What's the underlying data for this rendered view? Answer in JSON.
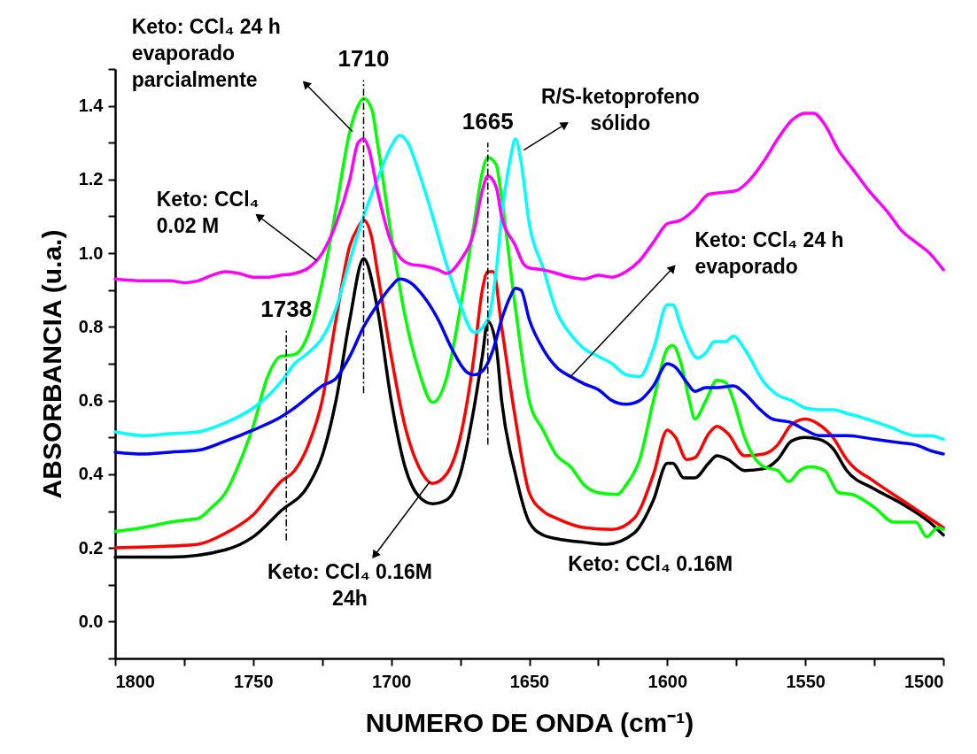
{
  "chart_data": {
    "type": "line",
    "xlabel": "NUMERO DE ONDA (cm⁻¹)",
    "ylabel": "ABSORBANCIA (u.a.)",
    "xlim": [
      1800,
      1500
    ],
    "ylim": [
      -0.1,
      1.5
    ],
    "xticks": [
      1800,
      {
        "value": 1775,
        "label": null
      },
      1750,
      {
        "value": 1725,
        "label": null
      },
      1700,
      {
        "value": 1675,
        "label": null
      },
      1650,
      {
        "value": 1625,
        "label": null
      },
      1600,
      {
        "value": 1575,
        "label": null
      },
      1550,
      {
        "value": 1525,
        "label": null
      },
      1500
    ],
    "yticks": [
      {
        "value": -0.1,
        "label": null
      },
      {
        "value": 0,
        "label": "0.0"
      },
      {
        "value": 0.1,
        "label": null
      },
      {
        "value": 0.2,
        "label": "0.2"
      },
      {
        "value": 0.3,
        "label": null
      },
      {
        "value": 0.4,
        "label": "0.4"
      },
      {
        "value": 0.5,
        "label": null
      },
      {
        "value": 0.6,
        "label": "0.6"
      },
      {
        "value": 0.7,
        "label": null
      },
      {
        "value": 0.8,
        "label": "0.8"
      },
      {
        "value": 0.9,
        "label": null
      },
      {
        "value": 1,
        "label": "1.0"
      },
      {
        "value": 1.1,
        "label": null
      },
      {
        "value": 1.2,
        "label": "1.2"
      },
      {
        "value": 1.3,
        "label": null
      },
      {
        "value": 1.4,
        "label": "1.4"
      },
      {
        "value": 1.5,
        "label": null
      }
    ],
    "series": [
      {
        "color": "#000000",
        "x": [
          1800,
          1780,
          1760,
          1750,
          1740,
          1730,
          1725,
          1720,
          1715,
          1710,
          1705,
          1700,
          1695,
          1690,
          1685,
          1680,
          1675,
          1670,
          1667,
          1665,
          1662,
          1660,
          1655,
          1650,
          1645,
          1640,
          1630,
          1622,
          1612,
          1605,
          1600,
          1598,
          1594,
          1590,
          1585,
          1582,
          1578,
          1572,
          1565,
          1560,
          1555,
          1550,
          1545,
          1540,
          1535,
          1525,
          1515,
          1505,
          1500
        ],
        "values": [
          0.175,
          0.175,
          0.195,
          0.23,
          0.3,
          0.37,
          0.45,
          0.6,
          0.82,
          0.985,
          0.85,
          0.6,
          0.42,
          0.34,
          0.32,
          0.33,
          0.4,
          0.58,
          0.72,
          0.815,
          0.75,
          0.6,
          0.4,
          0.27,
          0.235,
          0.225,
          0.215,
          0.21,
          0.24,
          0.33,
          0.43,
          0.43,
          0.39,
          0.39,
          0.43,
          0.45,
          0.44,
          0.41,
          0.415,
          0.44,
          0.49,
          0.5,
          0.495,
          0.47,
          0.41,
          0.36,
          0.32,
          0.27,
          0.235
        ]
      },
      {
        "color": "#ff0000",
        "x": [
          1800,
          1780,
          1770,
          1760,
          1750,
          1740,
          1735,
          1730,
          1725,
          1720,
          1715,
          1712,
          1710,
          1707,
          1705,
          1700,
          1695,
          1690,
          1685,
          1680,
          1675,
          1670,
          1667,
          1665,
          1663,
          1660,
          1655,
          1650,
          1645,
          1640,
          1630,
          1620,
          1612,
          1605,
          1600,
          1597,
          1593,
          1590,
          1585,
          1582,
          1578,
          1572,
          1565,
          1560,
          1555,
          1550,
          1545,
          1540,
          1535,
          1525,
          1515,
          1505,
          1500
        ],
        "values": [
          0.2,
          0.205,
          0.21,
          0.24,
          0.29,
          0.38,
          0.41,
          0.48,
          0.6,
          0.82,
          1.02,
          1.07,
          1.09,
          1.04,
          0.95,
          0.72,
          0.53,
          0.42,
          0.375,
          0.4,
          0.5,
          0.72,
          0.9,
          0.95,
          0.95,
          0.8,
          0.55,
          0.35,
          0.3,
          0.28,
          0.255,
          0.25,
          0.28,
          0.4,
          0.52,
          0.5,
          0.44,
          0.445,
          0.51,
          0.53,
          0.51,
          0.45,
          0.455,
          0.48,
          0.535,
          0.55,
          0.535,
          0.5,
          0.44,
          0.38,
          0.33,
          0.28,
          0.255
        ]
      },
      {
        "color": "#00ff00",
        "x": [
          1800,
          1790,
          1780,
          1775,
          1770,
          1765,
          1760,
          1755,
          1750,
          1745,
          1740,
          1735,
          1730,
          1725,
          1720,
          1715,
          1712,
          1710,
          1707,
          1705,
          1700,
          1695,
          1690,
          1685,
          1680,
          1675,
          1670,
          1667,
          1665,
          1662,
          1660,
          1655,
          1650,
          1645,
          1640,
          1635,
          1630,
          1625,
          1618,
          1615,
          1610,
          1605,
          1600,
          1598,
          1595,
          1592,
          1590,
          1586,
          1582,
          1579,
          1576,
          1572,
          1568,
          1565,
          1560,
          1556,
          1552,
          1548,
          1543,
          1538,
          1533,
          1525,
          1518,
          1510,
          1506,
          1502,
          1500
        ],
        "values": [
          0.245,
          0.255,
          0.27,
          0.275,
          0.28,
          0.31,
          0.35,
          0.43,
          0.53,
          0.66,
          0.72,
          0.725,
          0.78,
          0.92,
          1.12,
          1.33,
          1.4,
          1.42,
          1.39,
          1.3,
          1.05,
          0.83,
          0.68,
          0.595,
          0.66,
          0.85,
          1.08,
          1.22,
          1.26,
          1.24,
          1.15,
          0.85,
          0.6,
          0.52,
          0.45,
          0.42,
          0.37,
          0.35,
          0.345,
          0.37,
          0.44,
          0.6,
          0.74,
          0.75,
          0.7,
          0.6,
          0.55,
          0.6,
          0.655,
          0.65,
          0.6,
          0.5,
          0.44,
          0.42,
          0.41,
          0.38,
          0.41,
          0.42,
          0.41,
          0.35,
          0.345,
          0.31,
          0.27,
          0.27,
          0.23,
          0.255,
          0.25
        ]
      },
      {
        "color": "#00ffff",
        "x": [
          1800,
          1790,
          1780,
          1770,
          1760,
          1750,
          1745,
          1740,
          1735,
          1730,
          1725,
          1720,
          1715,
          1710,
          1705,
          1700,
          1697,
          1694,
          1690,
          1685,
          1680,
          1675,
          1670,
          1665,
          1662,
          1660,
          1657,
          1655,
          1653,
          1650,
          1645,
          1640,
          1635,
          1630,
          1625,
          1620,
          1615,
          1610,
          1605,
          1600,
          1598,
          1595,
          1589,
          1586,
          1583,
          1579,
          1576,
          1572,
          1565,
          1560,
          1555,
          1550,
          1545,
          1540,
          1535,
          1530,
          1520,
          1510,
          1505,
          1500
        ],
        "values": [
          0.515,
          0.505,
          0.51,
          0.515,
          0.54,
          0.58,
          0.61,
          0.65,
          0.7,
          0.73,
          0.77,
          0.85,
          0.98,
          1.1,
          1.2,
          1.29,
          1.32,
          1.3,
          1.22,
          1.1,
          0.97,
          0.86,
          0.785,
          0.82,
          0.95,
          1.1,
          1.25,
          1.31,
          1.25,
          1.08,
          0.96,
          0.84,
          0.78,
          0.74,
          0.72,
          0.7,
          0.67,
          0.665,
          0.74,
          0.86,
          0.86,
          0.8,
          0.715,
          0.73,
          0.76,
          0.76,
          0.775,
          0.74,
          0.65,
          0.615,
          0.6,
          0.58,
          0.575,
          0.575,
          0.565,
          0.555,
          0.53,
          0.505,
          0.505,
          0.495
        ]
      },
      {
        "color": "#0000ff",
        "x": [
          1800,
          1790,
          1780,
          1770,
          1760,
          1750,
          1740,
          1735,
          1730,
          1725,
          1720,
          1715,
          1710,
          1705,
          1700,
          1697,
          1693,
          1688,
          1683,
          1678,
          1673,
          1670,
          1667,
          1663,
          1660,
          1657,
          1655,
          1653,
          1650,
          1645,
          1640,
          1635,
          1630,
          1625,
          1620,
          1615,
          1610,
          1605,
          1600,
          1597,
          1593,
          1590,
          1586,
          1582,
          1576,
          1572,
          1567,
          1562,
          1555,
          1550,
          1545,
          1535,
          1525,
          1515,
          1510,
          1505,
          1500
        ],
        "values": [
          0.46,
          0.455,
          0.46,
          0.465,
          0.49,
          0.52,
          0.555,
          0.58,
          0.61,
          0.64,
          0.66,
          0.72,
          0.8,
          0.86,
          0.91,
          0.93,
          0.92,
          0.88,
          0.82,
          0.74,
          0.68,
          0.67,
          0.68,
          0.74,
          0.82,
          0.88,
          0.905,
          0.9,
          0.82,
          0.74,
          0.69,
          0.665,
          0.645,
          0.63,
          0.6,
          0.59,
          0.6,
          0.64,
          0.7,
          0.69,
          0.65,
          0.625,
          0.635,
          0.635,
          0.64,
          0.62,
          0.58,
          0.55,
          0.54,
          0.52,
          0.505,
          0.505,
          0.495,
          0.485,
          0.48,
          0.465,
          0.455
        ]
      },
      {
        "color": "#ff00ff",
        "x": [
          1800,
          1790,
          1780,
          1775,
          1770,
          1765,
          1760,
          1755,
          1750,
          1745,
          1740,
          1735,
          1730,
          1725,
          1720,
          1715,
          1712,
          1710,
          1708,
          1705,
          1700,
          1697,
          1693,
          1688,
          1683,
          1680,
          1675,
          1670,
          1667,
          1665,
          1662,
          1660,
          1655,
          1652,
          1650,
          1645,
          1640,
          1635,
          1630,
          1625,
          1620,
          1615,
          1610,
          1605,
          1600,
          1595,
          1590,
          1585,
          1580,
          1575,
          1570,
          1565,
          1560,
          1555,
          1550,
          1547,
          1543,
          1538,
          1533,
          1527,
          1520,
          1515,
          1510,
          1505,
          1500
        ],
        "values": [
          0.93,
          0.925,
          0.925,
          0.92,
          0.925,
          0.94,
          0.95,
          0.945,
          0.935,
          0.935,
          0.94,
          0.945,
          0.96,
          1,
          1.08,
          1.2,
          1.3,
          1.31,
          1.28,
          1.17,
          1.03,
          0.99,
          0.97,
          0.965,
          0.955,
          0.945,
          0.98,
          1.06,
          1.17,
          1.21,
          1.18,
          1.1,
          1.02,
          0.97,
          0.96,
          0.955,
          0.945,
          0.935,
          0.93,
          0.94,
          0.935,
          0.95,
          0.98,
          1.03,
          1.08,
          1.09,
          1.12,
          1.16,
          1.165,
          1.17,
          1.2,
          1.25,
          1.31,
          1.36,
          1.38,
          1.38,
          1.35,
          1.28,
          1.23,
          1.17,
          1.11,
          1.06,
          1.03,
          1,
          0.955
        ]
      }
    ],
    "ref_lines": [
      {
        "axis": "x",
        "value": 1710,
        "label": "1710",
        "line_style": "dashed"
      },
      {
        "axis": "x",
        "value": 1665,
        "label": "1665",
        "line_style": "dashed"
      },
      {
        "axis": "x",
        "value": 1738,
        "label": "1738",
        "line_style": "dashed"
      }
    ],
    "annotations": [
      {
        "text": "Keto: CCl₄ 24 h\nevaporado\nparcialmente",
        "x": 1714,
        "y": 1.33
      },
      {
        "text": "Keto: CCl₄\n0.02 M",
        "x": 1727,
        "y": 0.98
      },
      {
        "text": "R/S-ketoprofeno\nsólido",
        "x": 1652,
        "y": 1.28
      },
      {
        "text": "Keto: CCl₄ 24 h\nevaporado",
        "x": 1635,
        "y": 0.665
      },
      {
        "text": "Keto: CCl₄ 0.16M\n24h",
        "x": 1686,
        "y": 0.38
      },
      "Keto: CCl₄ 0.16M"
    ]
  }
}
